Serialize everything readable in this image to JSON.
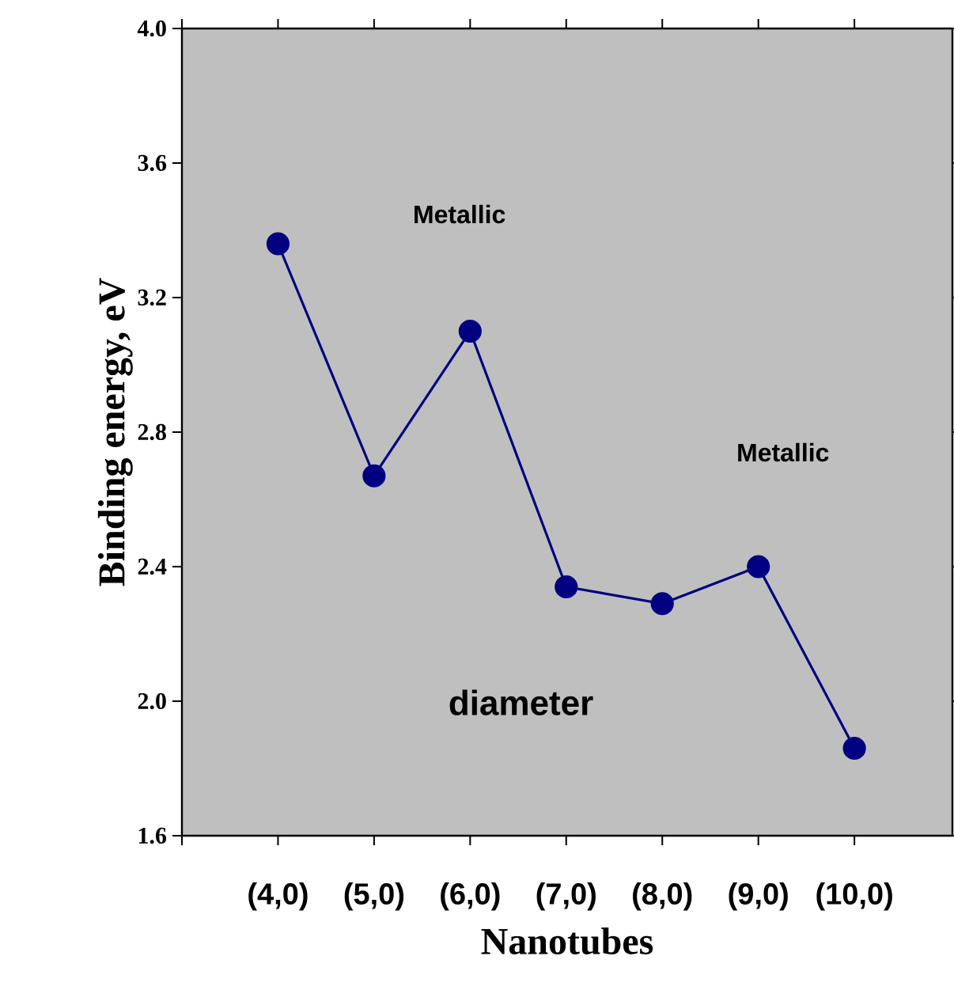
{
  "chart_data": {
    "type": "line",
    "categories": [
      "(4,0)",
      "(5,0)",
      "(6,0)",
      "(7,0)",
      "(8,0)",
      "(9,0)",
      "(10,0)"
    ],
    "series": [
      {
        "color": "#000080",
        "values": [
          3.36,
          2.67,
          3.1,
          2.34,
          2.29,
          2.4,
          1.86
        ]
      }
    ],
    "xlabel": "Nanotubes",
    "ylabel": "Binding energy, eV",
    "ylim": [
      1.6,
      4.0
    ],
    "yticks": [
      1.6,
      {
        "value": 2.0,
        "label": "2.0"
      },
      2.4,
      2.8,
      3.2,
      3.6,
      {
        "value": 4.0,
        "label": "4.0"
      }
    ],
    "annotations": [
      "Metallic",
      "Metallic",
      "diameter"
    ],
    "marker": "circle",
    "line_style": "solid"
  }
}
